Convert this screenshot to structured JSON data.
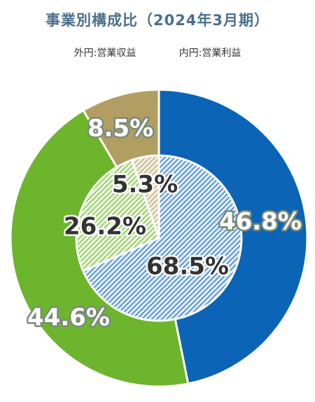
{
  "chart_data": [
    {
      "type": "pie",
      "title": "事業別構成比（2024年3月期）",
      "subtitle": "外円:営業収益",
      "values": [
        46.8,
        44.6,
        8.5
      ],
      "value_labels": [
        "46.8%",
        "44.6%",
        "8.5%"
      ],
      "colors": [
        "#0b64b5",
        "#6db52c",
        "#b29e62"
      ]
    },
    {
      "type": "pie",
      "subtitle": "内円:営業利益",
      "values": [
        68.5,
        26.2,
        5.3
      ],
      "value_labels": [
        "68.5%",
        "26.2%",
        "5.3%"
      ],
      "colors": [
        "#0b64b5",
        "#6db52c",
        "#b29e62"
      ]
    }
  ]
}
